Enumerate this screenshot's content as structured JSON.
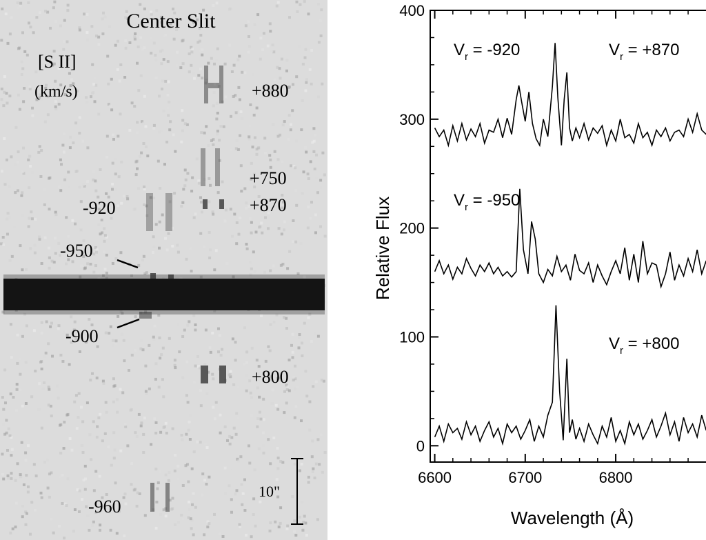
{
  "left_panel": {
    "title": "Center Slit",
    "line_label": "[S II]",
    "unit_label": "(km/s)",
    "velocity_labels": [
      "+880",
      "+750",
      "+870",
      "-920",
      "-950",
      "-900",
      "+800",
      "-960"
    ],
    "scale_label": "10\""
  },
  "chart_data": {
    "type": "line",
    "xlabel": "Wavelength (Å)",
    "ylabel": "Relative Flux",
    "xlim": [
      6595,
      6915
    ],
    "ylim": [
      -15,
      400
    ],
    "x_ticks": [
      6600,
      6700,
      6800
    ],
    "y_ticks": [
      0,
      100,
      200,
      300,
      400
    ],
    "grid": false,
    "annotations": [
      "V_r = -920",
      "V_r = +870",
      "V_r = -950",
      "V_r = +800"
    ],
    "series": [
      {
        "baseline": 285,
        "x": [
          6600,
          6605,
          6610,
          6615,
          6620,
          6625,
          6630,
          6635,
          6640,
          6645,
          6650,
          6655,
          6660,
          6665,
          6670,
          6675,
          6680,
          6685,
          6690,
          6693,
          6696,
          6700,
          6704,
          6708,
          6712,
          6716,
          6720,
          6725,
          6730,
          6733,
          6736,
          6740,
          6743,
          6746,
          6749,
          6752,
          6756,
          6760,
          6765,
          6770,
          6775,
          6780,
          6785,
          6790,
          6795,
          6800,
          6805,
          6810,
          6815,
          6820,
          6825,
          6830,
          6835,
          6840,
          6845,
          6850,
          6855,
          6860,
          6865,
          6870,
          6875,
          6880,
          6885,
          6890,
          6895,
          6900
        ],
        "y": [
          292,
          284,
          290,
          276,
          294,
          280,
          296,
          281,
          291,
          284,
          296,
          278,
          290,
          288,
          300,
          283,
          301,
          286,
          318,
          331,
          316,
          298,
          325,
          296,
          282,
          276,
          300,
          284,
          330,
          370,
          320,
          276,
          318,
          343,
          292,
          280,
          292,
          283,
          296,
          281,
          292,
          287,
          294,
          276,
          290,
          280,
          300,
          283,
          286,
          278,
          296,
          283,
          288,
          276,
          290,
          284,
          292,
          280,
          288,
          290,
          284,
          300,
          288,
          305,
          290,
          286
        ]
      },
      {
        "baseline": 160,
        "x": [
          6600,
          6605,
          6610,
          6615,
          6620,
          6625,
          6630,
          6635,
          6640,
          6645,
          6650,
          6655,
          6660,
          6665,
          6670,
          6675,
          6680,
          6685,
          6690,
          6694,
          6698,
          6703,
          6707,
          6711,
          6715,
          6720,
          6725,
          6730,
          6735,
          6740,
          6745,
          6750,
          6755,
          6760,
          6765,
          6770,
          6775,
          6780,
          6785,
          6790,
          6795,
          6800,
          6805,
          6810,
          6815,
          6820,
          6825,
          6830,
          6835,
          6840,
          6845,
          6850,
          6855,
          6860,
          6865,
          6870,
          6875,
          6880,
          6885,
          6890,
          6895,
          6900
        ],
        "y": [
          160,
          170,
          158,
          166,
          153,
          164,
          158,
          172,
          163,
          156,
          166,
          160,
          168,
          158,
          164,
          156,
          160,
          155,
          160,
          236,
          180,
          158,
          206,
          190,
          158,
          150,
          162,
          156,
          174,
          160,
          166,
          152,
          176,
          161,
          158,
          168,
          150,
          166,
          156,
          148,
          160,
          170,
          158,
          182,
          152,
          176,
          150,
          188,
          158,
          168,
          166,
          146,
          158,
          178,
          152,
          166,
          156,
          172,
          160,
          180,
          158,
          170
        ]
      },
      {
        "baseline": 10,
        "x": [
          6600,
          6605,
          6610,
          6615,
          6620,
          6625,
          6630,
          6635,
          6640,
          6645,
          6650,
          6655,
          6660,
          6665,
          6670,
          6675,
          6680,
          6685,
          6690,
          6695,
          6700,
          6705,
          6710,
          6715,
          6720,
          6725,
          6730,
          6734,
          6738,
          6742,
          6746,
          6749,
          6752,
          6756,
          6760,
          6765,
          6770,
          6775,
          6780,
          6785,
          6790,
          6795,
          6800,
          6805,
          6810,
          6815,
          6820,
          6825,
          6830,
          6835,
          6840,
          6845,
          6850,
          6855,
          6860,
          6865,
          6870,
          6875,
          6880,
          6885,
          6890,
          6895,
          6900
        ],
        "y": [
          8,
          18,
          4,
          20,
          12,
          16,
          6,
          22,
          10,
          18,
          4,
          14,
          22,
          8,
          16,
          2,
          20,
          12,
          18,
          6,
          14,
          24,
          4,
          18,
          8,
          28,
          40,
          129,
          50,
          5,
          80,
          12,
          24,
          6,
          16,
          4,
          20,
          10,
          2,
          18,
          8,
          26,
          4,
          14,
          2,
          22,
          10,
          20,
          6,
          14,
          24,
          8,
          18,
          30,
          10,
          22,
          4,
          26,
          12,
          20,
          8,
          28,
          14
        ]
      }
    ]
  }
}
